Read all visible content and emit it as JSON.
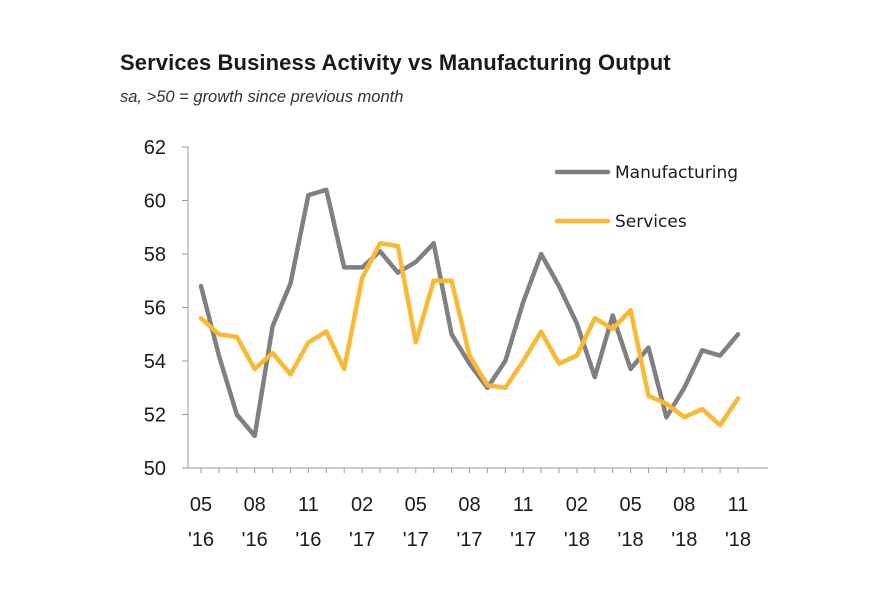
{
  "chart_data": {
    "type": "line",
    "title": "Services Business Activity vs Manufacturing Output",
    "subtitle": "sa, >50 = growth since previous month",
    "xlabel": "",
    "ylabel": "",
    "ylim": [
      50,
      62
    ],
    "yticks": [
      "62",
      "60",
      "58",
      "56",
      "54",
      "52",
      "50"
    ],
    "ytick_values": [
      62,
      60,
      58,
      56,
      54,
      52,
      50
    ],
    "xtick_labels": [
      {
        "index": 0,
        "line1": "05",
        "line2": "'16"
      },
      {
        "index": 3,
        "line1": "08",
        "line2": "'16"
      },
      {
        "index": 6,
        "line1": "11",
        "line2": "'16"
      },
      {
        "index": 9,
        "line1": "02",
        "line2": "'17"
      },
      {
        "index": 12,
        "line1": "05",
        "line2": "'17"
      },
      {
        "index": 15,
        "line1": "08",
        "line2": "'17"
      },
      {
        "index": 18,
        "line1": "11",
        "line2": "'17"
      },
      {
        "index": 21,
        "line1": "02",
        "line2": "'18"
      },
      {
        "index": 24,
        "line1": "05",
        "line2": "'18"
      },
      {
        "index": 27,
        "line1": "08",
        "line2": "'18"
      },
      {
        "index": 30,
        "line1": "11",
        "line2": "'18"
      }
    ],
    "x": [
      "2016-05",
      "2016-06",
      "2016-07",
      "2016-08",
      "2016-09",
      "2016-10",
      "2016-11",
      "2016-12",
      "2017-01",
      "2017-02",
      "2017-03",
      "2017-04",
      "2017-05",
      "2017-06",
      "2017-07",
      "2017-08",
      "2017-09",
      "2017-10",
      "2017-11",
      "2017-12",
      "2018-01",
      "2018-02",
      "2018-03",
      "2018-04",
      "2018-05",
      "2018-06",
      "2018-07",
      "2018-08",
      "2018-09",
      "2018-10",
      "2018-11"
    ],
    "series": [
      {
        "name": "Manufacturing",
        "color": "#808080",
        "values": [
          56.8,
          54.2,
          52.0,
          51.2,
          55.3,
          56.9,
          60.2,
          60.4,
          57.5,
          57.5,
          58.1,
          57.3,
          57.7,
          58.4,
          55.0,
          53.9,
          53.0,
          54.0,
          56.2,
          58.0,
          56.8,
          55.4,
          53.4,
          55.7,
          53.7,
          54.5,
          51.9,
          53.0,
          54.4,
          54.2,
          55.0
        ]
      },
      {
        "name": "Services",
        "color": "#F9B934",
        "values": [
          55.6,
          55.0,
          54.9,
          53.7,
          54.3,
          53.5,
          54.7,
          55.1,
          53.7,
          57.1,
          58.4,
          58.3,
          54.7,
          57.0,
          57.0,
          54.2,
          53.1,
          53.0,
          54.0,
          55.1,
          53.9,
          54.2,
          55.6,
          55.2,
          55.9,
          52.7,
          52.4,
          51.9,
          52.2,
          51.6,
          52.6
        ]
      }
    ],
    "grid": false,
    "legend_position": "top-right"
  }
}
